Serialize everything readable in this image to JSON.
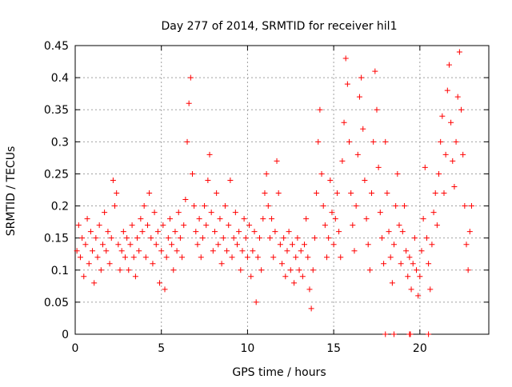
{
  "chart_data": {
    "type": "scatter",
    "title": "Day 277 of 2014, SRMTID for receiver hil1",
    "xlabel": "GPS time / hours",
    "ylabel": "SRMTID / TECUs",
    "xlim": [
      0,
      24
    ],
    "ylim": [
      0,
      0.45
    ],
    "x_ticks": [
      0,
      5,
      10,
      15,
      20
    ],
    "x_tick_labels": [
      "0",
      "5",
      "10",
      "15",
      "20"
    ],
    "y_ticks": [
      0,
      0.05,
      0.1,
      0.15,
      0.2,
      0.25,
      0.3,
      0.35,
      0.4,
      0.45
    ],
    "y_tick_labels": [
      "0",
      "0.05",
      "0.1",
      "0.15",
      "0.2",
      "0.25",
      "0.3",
      "0.35",
      "0.4",
      "0.45"
    ],
    "grid": true,
    "marker": "+",
    "color": "#ff0000",
    "series": [
      {
        "name": "hil1",
        "points": [
          [
            0.1,
            0.13
          ],
          [
            0.2,
            0.17
          ],
          [
            0.3,
            0.12
          ],
          [
            0.4,
            0.15
          ],
          [
            0.5,
            0.09
          ],
          [
            0.6,
            0.14
          ],
          [
            0.7,
            0.18
          ],
          [
            0.8,
            0.11
          ],
          [
            0.9,
            0.16
          ],
          [
            1.0,
            0.13
          ],
          [
            1.1,
            0.08
          ],
          [
            1.2,
            0.15
          ],
          [
            1.3,
            0.12
          ],
          [
            1.4,
            0.17
          ],
          [
            1.5,
            0.1
          ],
          [
            1.6,
            0.14
          ],
          [
            1.7,
            0.19
          ],
          [
            1.8,
            0.13
          ],
          [
            1.9,
            0.16
          ],
          [
            2.0,
            0.11
          ],
          [
            2.1,
            0.15
          ],
          [
            2.2,
            0.24
          ],
          [
            2.3,
            0.2
          ],
          [
            2.4,
            0.22
          ],
          [
            2.5,
            0.14
          ],
          [
            2.6,
            0.1
          ],
          [
            2.7,
            0.13
          ],
          [
            2.8,
            0.16
          ],
          [
            2.9,
            0.12
          ],
          [
            3.0,
            0.15
          ],
          [
            3.1,
            0.1
          ],
          [
            3.2,
            0.14
          ],
          [
            3.3,
            0.17
          ],
          [
            3.4,
            0.12
          ],
          [
            3.5,
            0.09
          ],
          [
            3.6,
            0.15
          ],
          [
            3.7,
            0.13
          ],
          [
            3.8,
            0.18
          ],
          [
            3.9,
            0.16
          ],
          [
            4.0,
            0.2
          ],
          [
            4.1,
            0.12
          ],
          [
            4.2,
            0.17
          ],
          [
            4.3,
            0.22
          ],
          [
            4.4,
            0.15
          ],
          [
            4.5,
            0.11
          ],
          [
            4.6,
            0.19
          ],
          [
            4.7,
            0.14
          ],
          [
            4.8,
            0.16
          ],
          [
            4.9,
            0.08
          ],
          [
            5.0,
            0.13
          ],
          [
            5.1,
            0.17
          ],
          [
            5.2,
            0.07
          ],
          [
            5.3,
            0.12
          ],
          [
            5.4,
            0.15
          ],
          [
            5.5,
            0.18
          ],
          [
            5.6,
            0.14
          ],
          [
            5.7,
            0.1
          ],
          [
            5.8,
            0.16
          ],
          [
            5.9,
            0.13
          ],
          [
            6.0,
            0.19
          ],
          [
            6.1,
            0.15
          ],
          [
            6.2,
            0.12
          ],
          [
            6.3,
            0.17
          ],
          [
            6.4,
            0.21
          ],
          [
            6.5,
            0.3
          ],
          [
            6.6,
            0.36
          ],
          [
            6.7,
            0.4
          ],
          [
            6.8,
            0.25
          ],
          [
            6.9,
            0.2
          ],
          [
            7.0,
            0.16
          ],
          [
            7.1,
            0.14
          ],
          [
            7.2,
            0.18
          ],
          [
            7.3,
            0.12
          ],
          [
            7.4,
            0.15
          ],
          [
            7.5,
            0.2
          ],
          [
            7.6,
            0.17
          ],
          [
            7.7,
            0.24
          ],
          [
            7.8,
            0.28
          ],
          [
            7.9,
            0.19
          ],
          [
            8.0,
            0.13
          ],
          [
            8.1,
            0.16
          ],
          [
            8.2,
            0.22
          ],
          [
            8.3,
            0.14
          ],
          [
            8.4,
            0.18
          ],
          [
            8.5,
            0.11
          ],
          [
            8.6,
            0.15
          ],
          [
            8.7,
            0.2
          ],
          [
            8.8,
            0.13
          ],
          [
            8.9,
            0.17
          ],
          [
            9.0,
            0.24
          ],
          [
            9.1,
            0.12
          ],
          [
            9.2,
            0.15
          ],
          [
            9.3,
            0.19
          ],
          [
            9.4,
            0.14
          ],
          [
            9.5,
            0.16
          ],
          [
            9.6,
            0.1
          ],
          [
            9.7,
            0.13
          ],
          [
            9.8,
            0.18
          ],
          [
            9.9,
            0.15
          ],
          [
            10.0,
            0.12
          ],
          [
            10.1,
            0.17
          ],
          [
            10.2,
            0.09
          ],
          [
            10.3,
            0.13
          ],
          [
            10.4,
            0.16
          ],
          [
            10.5,
            0.05
          ],
          [
            10.6,
            0.12
          ],
          [
            10.7,
            0.15
          ],
          [
            10.8,
            0.1
          ],
          [
            10.9,
            0.18
          ],
          [
            11.0,
            0.22
          ],
          [
            11.1,
            0.25
          ],
          [
            11.2,
            0.2
          ],
          [
            11.3,
            0.15
          ],
          [
            11.4,
            0.18
          ],
          [
            11.5,
            0.12
          ],
          [
            11.6,
            0.16
          ],
          [
            11.7,
            0.27
          ],
          [
            11.8,
            0.22
          ],
          [
            11.9,
            0.14
          ],
          [
            12.0,
            0.11
          ],
          [
            12.1,
            0.15
          ],
          [
            12.2,
            0.09
          ],
          [
            12.3,
            0.13
          ],
          [
            12.4,
            0.16
          ],
          [
            12.5,
            0.1
          ],
          [
            12.6,
            0.14
          ],
          [
            12.7,
            0.08
          ],
          [
            12.8,
            0.12
          ],
          [
            12.9,
            0.15
          ],
          [
            13.0,
            0.1
          ],
          [
            13.1,
            0.13
          ],
          [
            13.2,
            0.09
          ],
          [
            13.3,
            0.14
          ],
          [
            13.4,
            0.18
          ],
          [
            13.5,
            0.12
          ],
          [
            13.6,
            0.07
          ],
          [
            13.7,
            0.04
          ],
          [
            13.8,
            0.1
          ],
          [
            13.9,
            0.15
          ],
          [
            14.0,
            0.22
          ],
          [
            14.1,
            0.3
          ],
          [
            14.2,
            0.35
          ],
          [
            14.3,
            0.25
          ],
          [
            14.4,
            0.2
          ],
          [
            14.5,
            0.17
          ],
          [
            14.6,
            0.12
          ],
          [
            14.7,
            0.15
          ],
          [
            14.8,
            0.24
          ],
          [
            14.9,
            0.19
          ],
          [
            15.0,
            0.14
          ],
          [
            15.1,
            0.18
          ],
          [
            15.2,
            0.22
          ],
          [
            15.3,
            0.16
          ],
          [
            15.4,
            0.12
          ],
          [
            15.5,
            0.27
          ],
          [
            15.6,
            0.33
          ],
          [
            15.7,
            0.43
          ],
          [
            15.8,
            0.39
          ],
          [
            15.9,
            0.3
          ],
          [
            16.0,
            0.22
          ],
          [
            16.1,
            0.17
          ],
          [
            16.2,
            0.13
          ],
          [
            16.3,
            0.2
          ],
          [
            16.4,
            0.28
          ],
          [
            16.5,
            0.37
          ],
          [
            16.6,
            0.4
          ],
          [
            16.7,
            0.32
          ],
          [
            16.8,
            0.24
          ],
          [
            16.9,
            0.18
          ],
          [
            17.0,
            0.14
          ],
          [
            17.1,
            0.1
          ],
          [
            17.2,
            0.22
          ],
          [
            17.3,
            0.3
          ],
          [
            17.4,
            0.41
          ],
          [
            17.5,
            0.35
          ],
          [
            17.6,
            0.26
          ],
          [
            17.7,
            0.19
          ],
          [
            17.8,
            0.15
          ],
          [
            17.9,
            0.11
          ],
          [
            18.0,
            0.3
          ],
          [
            18.1,
            0.22
          ],
          [
            18.2,
            0.16
          ],
          [
            18.3,
            0.12
          ],
          [
            18.4,
            0.08
          ],
          [
            18.5,
            0.14
          ],
          [
            18.6,
            0.2
          ],
          [
            18.7,
            0.25
          ],
          [
            18.8,
            0.17
          ],
          [
            18.9,
            0.11
          ],
          [
            19.0,
            0.16
          ],
          [
            19.1,
            0.2
          ],
          [
            19.2,
            0.13
          ],
          [
            19.3,
            0.09
          ],
          [
            19.4,
            0.12
          ],
          [
            19.5,
            0.07
          ],
          [
            19.6,
            0.11
          ],
          [
            19.7,
            0.15
          ],
          [
            19.8,
            0.1
          ],
          [
            19.9,
            0.06
          ],
          [
            20.0,
            0.09
          ],
          [
            20.1,
            0.13
          ],
          [
            20.2,
            0.18
          ],
          [
            20.3,
            0.26
          ],
          [
            20.4,
            0.15
          ],
          [
            20.5,
            0.11
          ],
          [
            20.6,
            0.07
          ],
          [
            20.7,
            0.14
          ],
          [
            20.8,
            0.19
          ],
          [
            20.9,
            0.22
          ],
          [
            21.0,
            0.17
          ],
          [
            21.1,
            0.25
          ],
          [
            21.2,
            0.3
          ],
          [
            21.3,
            0.34
          ],
          [
            21.4,
            0.22
          ],
          [
            21.5,
            0.28
          ],
          [
            21.6,
            0.38
          ],
          [
            21.7,
            0.42
          ],
          [
            21.8,
            0.33
          ],
          [
            21.9,
            0.27
          ],
          [
            22.0,
            0.23
          ],
          [
            22.1,
            0.3
          ],
          [
            22.2,
            0.37
          ],
          [
            22.3,
            0.44
          ],
          [
            22.4,
            0.35
          ],
          [
            22.5,
            0.28
          ],
          [
            22.6,
            0.2
          ],
          [
            22.7,
            0.14
          ],
          [
            22.8,
            0.1
          ],
          [
            22.9,
            0.16
          ],
          [
            23.0,
            0.2
          ],
          [
            18.0,
            0.0
          ],
          [
            18.5,
            0.0
          ],
          [
            19.4,
            0.0
          ],
          [
            19.45,
            0.0
          ],
          [
            20.5,
            0.0
          ]
        ]
      }
    ]
  }
}
